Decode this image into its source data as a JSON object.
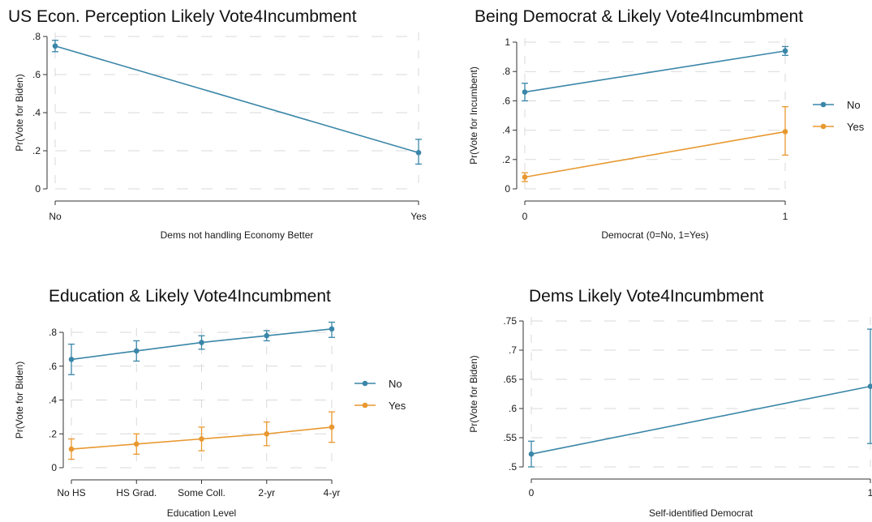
{
  "chart_data": [
    {
      "type": "line",
      "title": "US Econ. Perception Likely Vote4Incumbment",
      "xlabel": "Dems not handling Economy Better",
      "ylabel": "Pr(Vote for Biden)",
      "categories": [
        "No",
        "Yes"
      ],
      "y_ticks": [
        0,
        0.2,
        0.4,
        0.6,
        0.8
      ],
      "y_tick_labels": [
        "0",
        ".2",
        ".4",
        ".6",
        ".8"
      ],
      "ylim": [
        0,
        0.8
      ],
      "grid": true,
      "legend": "none",
      "series": [
        {
          "values": [
            0.75,
            0.19
          ],
          "ci_low": [
            0.72,
            0.13
          ],
          "ci_high": [
            0.78,
            0.26
          ],
          "color": "#3a86a8"
        }
      ]
    },
    {
      "type": "line",
      "title": "Being Democrat & Likely Vote4Incumbment",
      "xlabel": "Democrat (0=No, 1=Yes)",
      "ylabel": "Pr(Vote for Incumbent)",
      "categories": [
        "0",
        "1"
      ],
      "y_ticks": [
        0,
        0.2,
        0.4,
        0.6,
        0.8,
        1
      ],
      "y_tick_labels": [
        "0",
        ".2",
        ".4",
        ".6",
        ".8",
        "1"
      ],
      "ylim": [
        0,
        1
      ],
      "grid": true,
      "legend": "right",
      "series": [
        {
          "name": "No",
          "values": [
            0.66,
            0.94
          ],
          "ci_low": [
            0.6,
            0.91
          ],
          "ci_high": [
            0.72,
            0.97
          ],
          "color": "#3a86a8"
        },
        {
          "name": "Yes",
          "values": [
            0.08,
            0.39
          ],
          "ci_low": [
            0.05,
            0.23
          ],
          "ci_high": [
            0.11,
            0.56
          ],
          "color": "#e8982f"
        }
      ]
    },
    {
      "type": "line",
      "title": "Education & Likely Vote4Incumbment",
      "xlabel": "Education Level",
      "ylabel": "Pr(Vote for Biden)",
      "categories": [
        "No HS",
        "HS Grad.",
        "Some Coll.",
        "2-yr",
        "4-yr"
      ],
      "y_ticks": [
        0,
        0.2,
        0.4,
        0.6,
        0.8
      ],
      "y_tick_labels": [
        "0",
        ".2",
        ".4",
        ".6",
        ".8"
      ],
      "ylim": [
        0,
        0.8
      ],
      "grid": true,
      "legend": "right",
      "series": [
        {
          "name": "No",
          "values": [
            0.64,
            0.69,
            0.74,
            0.78,
            0.82
          ],
          "ci_low": [
            0.55,
            0.63,
            0.7,
            0.75,
            0.77
          ],
          "ci_high": [
            0.73,
            0.75,
            0.78,
            0.81,
            0.86
          ],
          "color": "#3a86a8"
        },
        {
          "name": "Yes",
          "values": [
            0.11,
            0.14,
            0.17,
            0.2,
            0.24
          ],
          "ci_low": [
            0.05,
            0.08,
            0.1,
            0.13,
            0.15
          ],
          "ci_high": [
            0.17,
            0.2,
            0.24,
            0.27,
            0.33
          ],
          "color": "#e8982f"
        }
      ]
    },
    {
      "type": "line",
      "title": "Dems Likely Vote4Incumbment",
      "xlabel": "Self-identified Democrat",
      "ylabel": "Pr(Vote for Biden)",
      "categories": [
        "0",
        "1"
      ],
      "y_ticks": [
        0.5,
        0.55,
        0.6,
        0.65,
        0.7,
        0.75
      ],
      "y_tick_labels": [
        ".5",
        ".55",
        ".6",
        ".65",
        ".7",
        ".75"
      ],
      "ylim": [
        0.5,
        0.75
      ],
      "grid": true,
      "legend": "none",
      "series": [
        {
          "values": [
            0.522,
            0.638
          ],
          "ci_low": [
            0.5,
            0.54
          ],
          "ci_high": [
            0.544,
            0.736
          ],
          "color": "#3a86a8"
        }
      ]
    }
  ]
}
